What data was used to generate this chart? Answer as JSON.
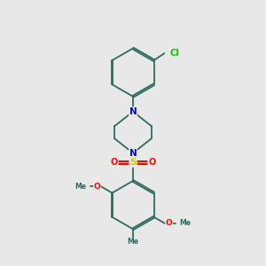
{
  "background_color": "#e8e8e8",
  "bond_color": "#2d6b5e",
  "atom_colors": {
    "N": "#0000ee",
    "O": "#ff0000",
    "S": "#cccc00",
    "Cl": "#00cc00",
    "C": "#2d6b5e",
    "Me": "#2d6b5e"
  },
  "figsize": [
    3.0,
    3.0
  ],
  "dpi": 100,
  "lw": 1.3
}
